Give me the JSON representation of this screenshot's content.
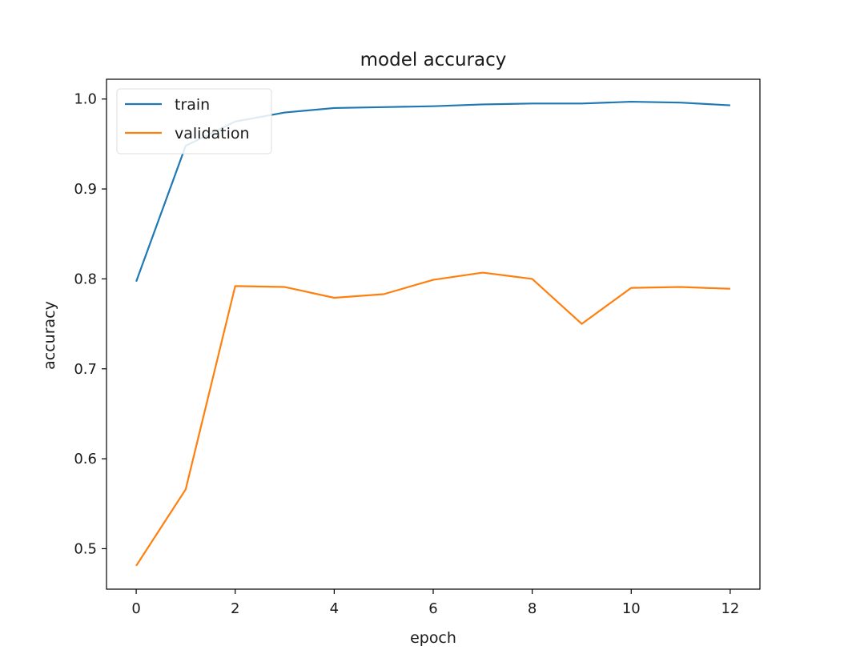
{
  "chart_data": {
    "type": "line",
    "title": "model accuracy",
    "xlabel": "epoch",
    "ylabel": "accuracy",
    "xlim": [
      -0.6,
      12.6
    ],
    "ylim": [
      0.455,
      1.022
    ],
    "xticks": [
      0,
      2,
      4,
      6,
      8,
      10,
      12
    ],
    "yticks": [
      0.5,
      0.6,
      0.7,
      0.8,
      0.9,
      1.0
    ],
    "ytick_labels": [
      "0.5",
      "0.6",
      "0.7",
      "0.8",
      "0.9",
      "1.0"
    ],
    "x": [
      0,
      1,
      2,
      3,
      4,
      5,
      6,
      7,
      8,
      9,
      10,
      11,
      12
    ],
    "series": [
      {
        "name": "train",
        "color": "#1f77b4",
        "values": [
          0.797,
          0.948,
          0.975,
          0.985,
          0.99,
          0.991,
          0.992,
          0.994,
          0.995,
          0.995,
          0.997,
          0.996,
          0.993
        ]
      },
      {
        "name": "validation",
        "color": "#ff7f0e",
        "values": [
          0.481,
          0.566,
          0.792,
          0.791,
          0.779,
          0.783,
          0.799,
          0.807,
          0.8,
          0.75,
          0.79,
          0.791,
          0.789
        ]
      }
    ],
    "legend_position": "upper-left",
    "grid": false
  }
}
